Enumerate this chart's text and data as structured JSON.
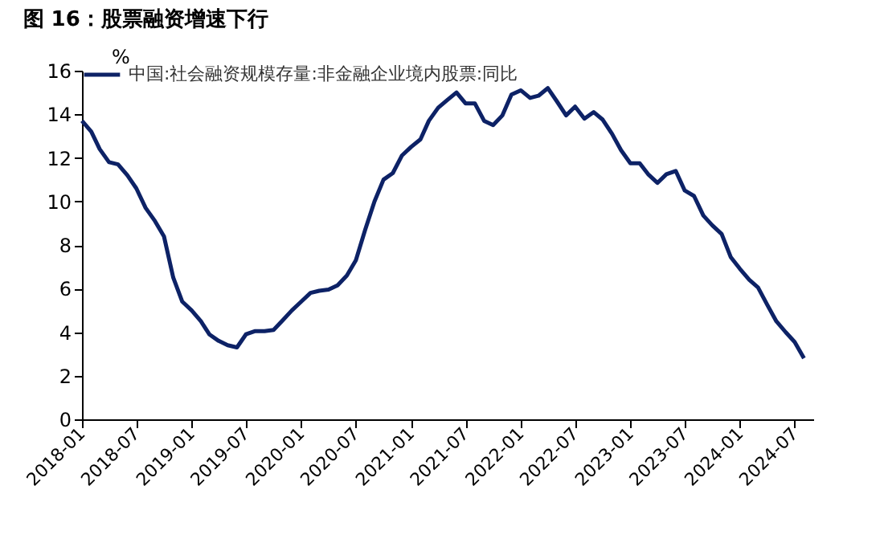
{
  "chart_data": {
    "type": "line",
    "title": "图 16：股票融资增速下行",
    "ylabel": "%",
    "x": [
      "2018-01",
      "2018-02",
      "2018-03",
      "2018-04",
      "2018-05",
      "2018-06",
      "2018-07",
      "2018-08",
      "2018-09",
      "2018-10",
      "2018-11",
      "2018-12",
      "2019-01",
      "2019-02",
      "2019-03",
      "2019-04",
      "2019-05",
      "2019-06",
      "2019-07",
      "2019-08",
      "2019-09",
      "2019-10",
      "2019-11",
      "2019-12",
      "2020-01",
      "2020-02",
      "2020-03",
      "2020-04",
      "2020-05",
      "2020-06",
      "2020-07",
      "2020-08",
      "2020-09",
      "2020-10",
      "2020-11",
      "2020-12",
      "2021-01",
      "2021-02",
      "2021-03",
      "2021-04",
      "2021-05",
      "2021-06",
      "2021-07",
      "2021-08",
      "2021-09",
      "2021-10",
      "2021-11",
      "2021-12",
      "2022-01",
      "2022-02",
      "2022-03",
      "2022-04",
      "2022-05",
      "2022-06",
      "2022-07",
      "2022-08",
      "2022-09",
      "2022-10",
      "2022-11",
      "2022-12",
      "2023-01",
      "2023-02",
      "2023-03",
      "2023-04",
      "2023-05",
      "2023-06",
      "2023-07",
      "2023-08",
      "2023-09",
      "2023-10",
      "2023-11",
      "2023-12",
      "2024-01",
      "2024-02",
      "2024-03",
      "2024-04",
      "2024-05",
      "2024-06",
      "2024-07",
      "2024-08"
    ],
    "series": [
      {
        "name": "中国:社会融资规模存量:非金融企业境内股票:同比",
        "color": "#0d2266",
        "values": [
          13.7,
          13.2,
          12.4,
          11.8,
          11.7,
          11.2,
          10.6,
          9.7,
          9.1,
          8.4,
          6.5,
          5.4,
          5.0,
          4.5,
          3.9,
          3.6,
          3.4,
          3.3,
          3.9,
          4.05,
          4.05,
          4.1,
          4.55,
          5.0,
          5.4,
          5.8,
          5.9,
          5.95,
          6.15,
          6.6,
          7.3,
          8.7,
          10.0,
          11.0,
          11.3,
          12.1,
          12.5,
          12.85,
          13.7,
          14.3,
          14.65,
          15.0,
          14.5,
          14.5,
          13.7,
          13.5,
          13.95,
          14.9,
          15.1,
          14.75,
          14.85,
          15.2,
          14.6,
          13.95,
          14.35,
          13.8,
          14.1,
          13.75,
          13.1,
          12.35,
          11.75,
          11.75,
          11.25,
          10.85,
          11.25,
          11.4,
          10.5,
          10.25,
          9.35,
          8.9,
          8.5,
          7.45,
          6.9,
          6.4,
          6.05,
          5.25,
          4.5,
          4.0,
          3.55,
          2.8
        ]
      }
    ],
    "xlim": [
      "2018-01",
      "2024-09"
    ],
    "xticks": [
      "2018-01",
      "2018-07",
      "2019-01",
      "2019-07",
      "2020-01",
      "2020-07",
      "2021-01",
      "2021-07",
      "2022-01",
      "2022-07",
      "2023-01",
      "2023-07",
      "2024-01",
      "2024-07"
    ],
    "ylim": [
      0,
      16
    ],
    "yticks": [
      0,
      2,
      4,
      6,
      8,
      10,
      12,
      14,
      16
    ],
    "grid": false,
    "legend": "top",
    "line_style": "solid",
    "marker": "none"
  }
}
